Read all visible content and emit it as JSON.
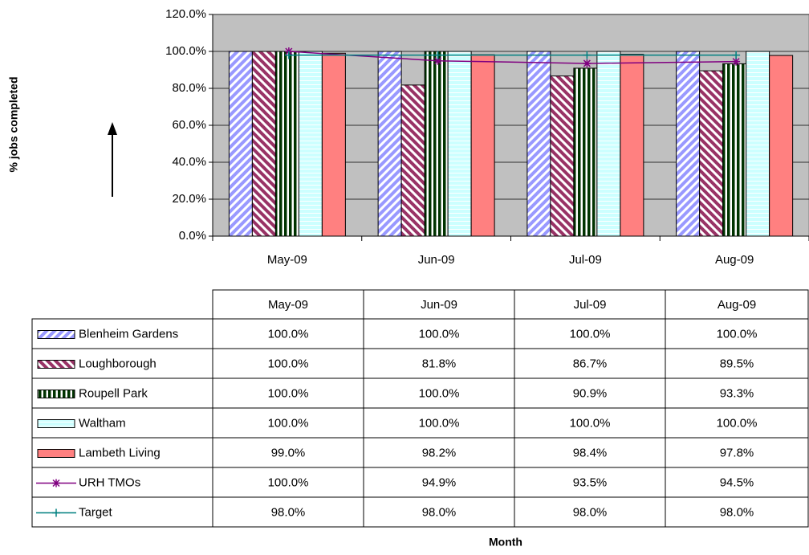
{
  "chart_data": {
    "type": "bar",
    "y_axis_label": "% jobs completed",
    "x_axis_label": "Month",
    "categories": [
      "May-09",
      "Jun-09",
      "Jul-09",
      "Aug-09"
    ],
    "ylim": [
      0,
      120
    ],
    "yticks": [
      {
        "value": 0,
        "label": "0.0%"
      },
      {
        "value": 20,
        "label": "20.0%"
      },
      {
        "value": 40,
        "label": "40.0%"
      },
      {
        "value": 60,
        "label": "60.0%"
      },
      {
        "value": 80,
        "label": "80.0%"
      },
      {
        "value": 100,
        "label": "100.0%"
      },
      {
        "value": 120,
        "label": "120.0%"
      }
    ],
    "grid": true,
    "plot_background": "#c0c0c0",
    "data_table": true,
    "series": [
      {
        "name": "Blenheim Gardens",
        "type": "bar",
        "color": "#9999ff",
        "pattern": "diagonal-up",
        "values": [
          100,
          100,
          100,
          100
        ],
        "value_labels": [
          "100.0%",
          "100.0%",
          "100.0%",
          "100.0%"
        ]
      },
      {
        "name": "Loughborough",
        "type": "bar",
        "color": "#993366",
        "pattern": "diagonal-down",
        "values": [
          100,
          81.8,
          86.7,
          89.5
        ],
        "value_labels": [
          "100.0%",
          "81.8%",
          "86.7%",
          "89.5%"
        ]
      },
      {
        "name": "Roupell Park",
        "type": "bar",
        "color": "#003300",
        "pattern": "vertical",
        "values": [
          100,
          100,
          90.9,
          93.3
        ],
        "value_labels": [
          "100.0%",
          "100.0%",
          "90.9%",
          "93.3%"
        ]
      },
      {
        "name": "Waltham",
        "type": "bar",
        "color": "#ccffff",
        "pattern": "horizontal",
        "values": [
          100,
          100,
          100,
          100
        ],
        "value_labels": [
          "100.0%",
          "100.0%",
          "100.0%",
          "100.0%"
        ]
      },
      {
        "name": "Lambeth Living",
        "type": "bar",
        "color": "#ff8080",
        "pattern": "solid",
        "values": [
          99.0,
          98.2,
          98.4,
          97.8
        ],
        "value_labels": [
          "99.0%",
          "98.2%",
          "98.4%",
          "97.8%"
        ]
      },
      {
        "name": "URH TMOs",
        "type": "line",
        "color": "#800080",
        "marker": "asterisk",
        "values": [
          100,
          94.9,
          93.5,
          94.5
        ],
        "value_labels": [
          "100.0%",
          "94.9%",
          "93.5%",
          "94.5%"
        ]
      },
      {
        "name": "Target",
        "type": "line",
        "color": "#008080",
        "marker": "plus",
        "values": [
          98.0,
          98.0,
          98.0,
          98.0
        ],
        "value_labels": [
          "98.0%",
          "98.0%",
          "98.0%",
          "98.0%"
        ]
      }
    ]
  }
}
